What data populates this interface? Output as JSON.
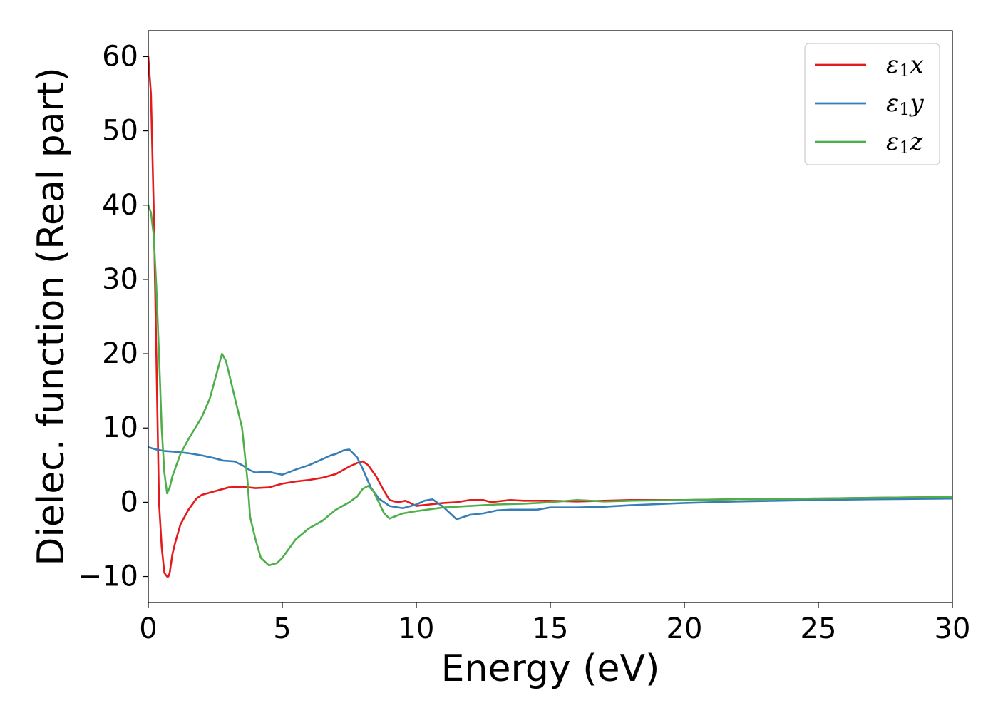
{
  "chart_data": {
    "type": "line",
    "title": "",
    "xlabel": "Energy (eV)",
    "ylabel": "Dielec. function (Real part)",
    "xlim": [
      0,
      30
    ],
    "ylim": [
      -13.5,
      63.5
    ],
    "xticks": [
      0,
      5,
      10,
      15,
      20,
      25,
      30
    ],
    "xtick_labels": [
      "0",
      "5",
      "10",
      "15",
      "20",
      "25",
      "30"
    ],
    "yticks": [
      -10,
      0,
      10,
      20,
      30,
      40,
      50,
      60
    ],
    "ytick_labels": [
      "−10",
      "0",
      "10",
      "20",
      "30",
      "40",
      "50",
      "60"
    ],
    "grid": false,
    "legend_position": "top-right",
    "series": [
      {
        "name": "ε₁x",
        "legend_symbol": "ε",
        "legend_sub": "1",
        "legend_suffix": "x",
        "color": "#e41a1c",
        "x": [
          0,
          0.1,
          0.2,
          0.3,
          0.4,
          0.5,
          0.6,
          0.7,
          0.75,
          0.8,
          0.9,
          1.0,
          1.2,
          1.5,
          1.8,
          2.0,
          2.5,
          3.0,
          3.5,
          4.0,
          4.5,
          5.0,
          5.5,
          6.0,
          6.5,
          7.0,
          7.5,
          7.8,
          8.0,
          8.2,
          8.5,
          8.8,
          9.0,
          9.3,
          9.6,
          10.0,
          10.5,
          11.0,
          11.5,
          12.0,
          12.5,
          12.8,
          13.0,
          13.5,
          14.0,
          15.0,
          16.0,
          17.0,
          18.0,
          20.0,
          22.0,
          25.0,
          27.0,
          30.0
        ],
        "y": [
          60,
          55,
          40,
          20,
          0,
          -6,
          -9.5,
          -10,
          -10,
          -9.5,
          -7,
          -5.5,
          -3,
          -1,
          0.5,
          1,
          1.5,
          2,
          2.1,
          1.9,
          2.0,
          2.5,
          2.8,
          3.0,
          3.3,
          3.8,
          4.8,
          5.3,
          5.5,
          5.0,
          3.5,
          1.5,
          0.3,
          0.0,
          0.2,
          -0.5,
          -0.3,
          -0.1,
          0.0,
          0.3,
          0.3,
          0.0,
          0.1,
          0.3,
          0.2,
          0.2,
          0.1,
          0.2,
          0.3,
          0.3,
          0.4,
          0.5,
          0.6,
          0.7
        ]
      },
      {
        "name": "ε₁y",
        "legend_symbol": "ε",
        "legend_sub": "1",
        "legend_suffix": "y",
        "color": "#377eb8",
        "x": [
          0,
          0.3,
          0.6,
          1.0,
          1.5,
          2.0,
          2.5,
          2.8,
          3.2,
          3.5,
          3.8,
          4.0,
          4.5,
          5.0,
          5.5,
          6.0,
          6.5,
          6.8,
          7.0,
          7.3,
          7.5,
          7.8,
          8.0,
          8.3,
          8.6,
          9.0,
          9.5,
          10.0,
          10.3,
          10.6,
          11.0,
          11.5,
          12.0,
          12.5,
          13.0,
          13.5,
          14.0,
          14.5,
          15.0,
          16.0,
          17.0,
          18.0,
          20.0,
          22.0,
          25.0,
          27.0,
          30.0
        ],
        "y": [
          7.4,
          7.1,
          6.9,
          6.8,
          6.6,
          6.3,
          5.9,
          5.6,
          5.5,
          5.0,
          4.3,
          4.0,
          4.1,
          3.7,
          4.4,
          5.0,
          5.8,
          6.3,
          6.5,
          7.0,
          7.1,
          6.0,
          4.5,
          2.0,
          0.5,
          -0.5,
          -0.8,
          -0.3,
          0.2,
          0.4,
          -0.6,
          -2.3,
          -1.7,
          -1.5,
          -1.1,
          -1.0,
          -1.0,
          -1.0,
          -0.7,
          -0.7,
          -0.6,
          -0.4,
          -0.1,
          0.1,
          0.3,
          0.4,
          0.5
        ]
      },
      {
        "name": "ε₁z",
        "legend_symbol": "ε",
        "legend_sub": "1",
        "legend_suffix": "z",
        "color": "#4daf4a",
        "x": [
          0,
          0.1,
          0.2,
          0.3,
          0.4,
          0.5,
          0.6,
          0.7,
          0.8,
          0.9,
          1.0,
          1.2,
          1.5,
          2.0,
          2.3,
          2.6,
          2.75,
          2.9,
          3.2,
          3.5,
          3.7,
          3.8,
          4.0,
          4.2,
          4.5,
          4.8,
          5.0,
          5.5,
          6.0,
          6.5,
          7.0,
          7.5,
          7.8,
          8.0,
          8.2,
          8.4,
          8.6,
          8.8,
          9.0,
          9.5,
          10.0,
          11.0,
          12.0,
          13.0,
          14.0,
          15.0,
          16.0,
          17.0,
          18.0,
          20.0,
          22.0,
          25.0,
          27.0,
          30.0
        ],
        "y": [
          40,
          39,
          36,
          29,
          20,
          10,
          4,
          1.2,
          2,
          3.5,
          4.5,
          6.5,
          8.5,
          11.5,
          14,
          18,
          20,
          19,
          14.5,
          10,
          3,
          -2,
          -5,
          -7.5,
          -8.5,
          -8.2,
          -7.5,
          -5,
          -3.5,
          -2.5,
          -1,
          0,
          0.8,
          1.8,
          2.2,
          1.5,
          0,
          -1.5,
          -2.2,
          -1.5,
          -1.2,
          -0.7,
          -0.5,
          -0.3,
          -0.2,
          0.0,
          0.3,
          0.1,
          0.2,
          0.3,
          0.4,
          0.5,
          0.6,
          0.7
        ]
      }
    ]
  }
}
